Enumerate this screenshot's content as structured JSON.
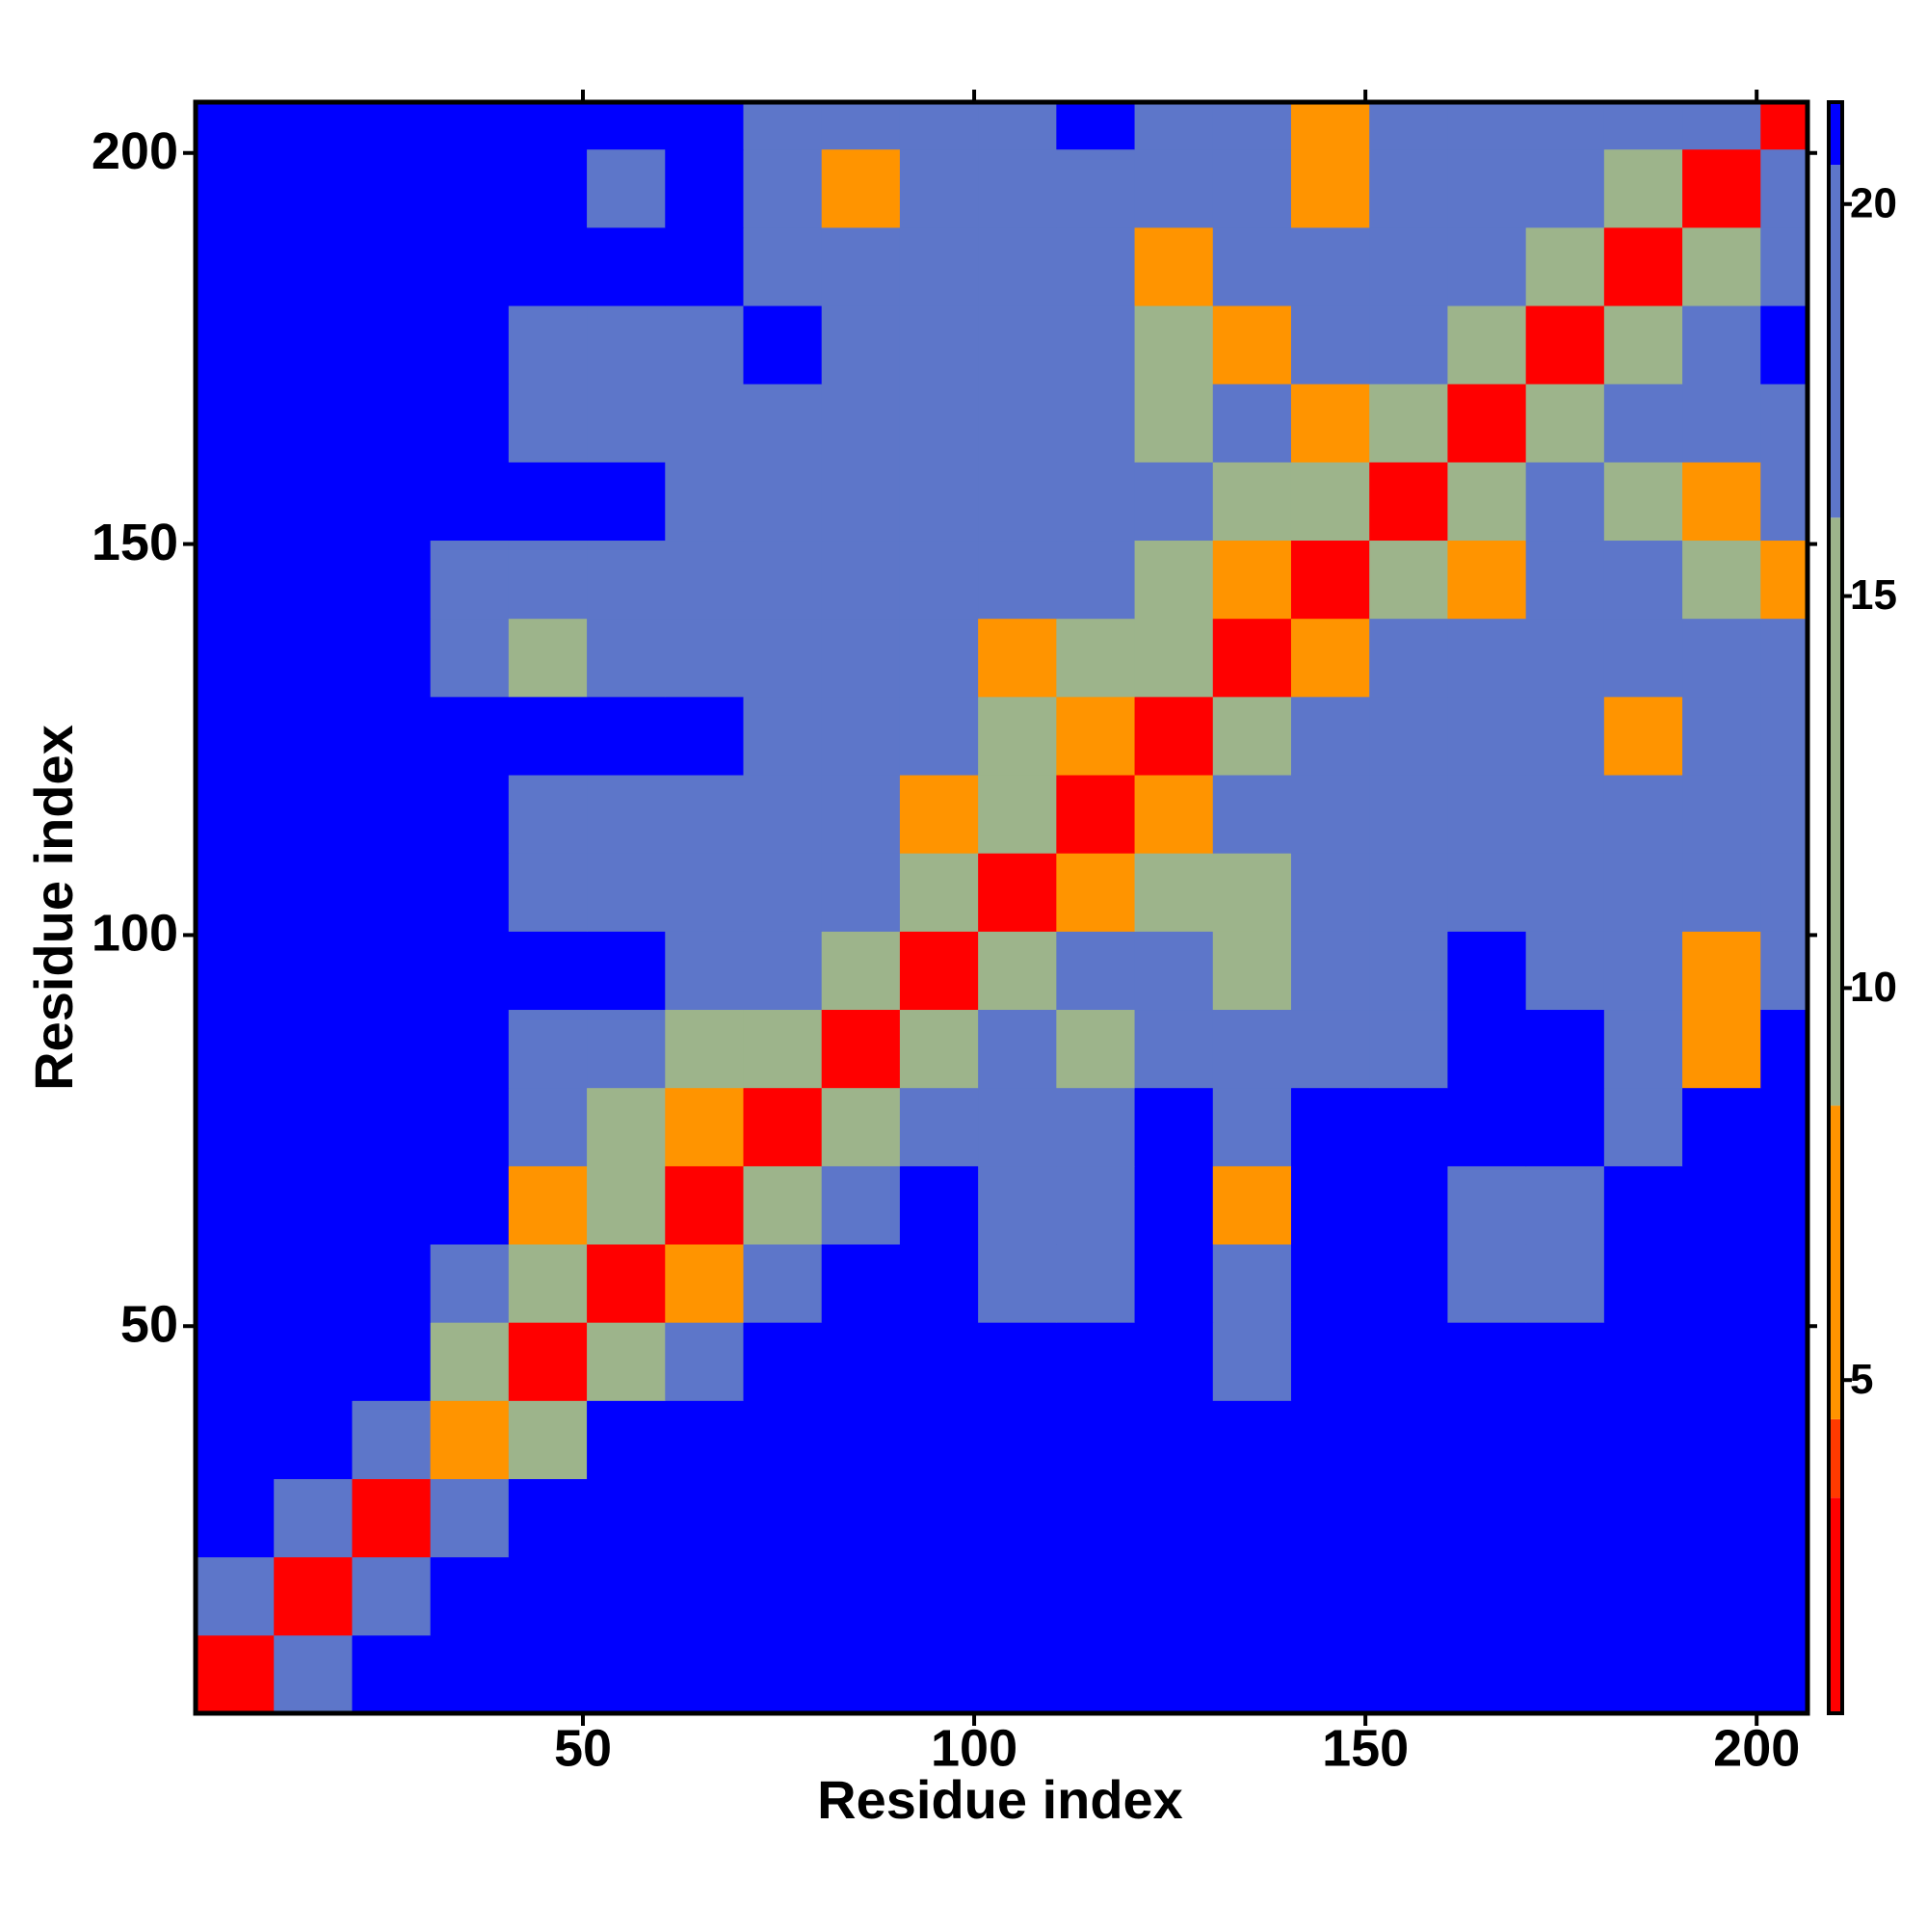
{
  "chart_data": {
    "type": "heatmap",
    "xlabel": "Residue index",
    "ylabel": "Residue index",
    "xlim": [
      0.5,
      206.5
    ],
    "ylim": [
      0.5,
      206.5
    ],
    "xticks": [
      50,
      100,
      150,
      200
    ],
    "yticks": [
      50,
      100,
      150,
      200
    ],
    "x_edges": [
      0.5,
      10.5,
      20.5,
      30.5,
      40.5,
      50.5,
      60.5,
      70.5,
      80.5,
      90.5,
      100.5,
      110.5,
      120.5,
      130.5,
      140.5,
      150.5,
      160.5,
      170.5,
      180.5,
      190.5,
      200.5,
      206.5
    ],
    "y_edges": [
      0.5,
      10.5,
      20.5,
      30.5,
      40.5,
      50.5,
      60.5,
      70.5,
      80.5,
      90.5,
      100.5,
      110.5,
      120.5,
      130.5,
      140.5,
      150.5,
      160.5,
      170.5,
      180.5,
      190.5,
      200.5,
      206.5
    ],
    "z": [
      [
        2,
        18,
        21,
        21,
        21,
        21,
        21,
        21,
        21,
        21,
        21,
        21,
        21,
        21,
        21,
        21,
        21,
        21,
        21,
        21,
        21
      ],
      [
        18,
        2,
        18,
        21,
        21,
        21,
        21,
        21,
        21,
        21,
        21,
        21,
        21,
        21,
        21,
        21,
        21,
        21,
        21,
        21,
        21
      ],
      [
        21,
        18,
        2,
        18,
        21,
        21,
        21,
        21,
        21,
        21,
        21,
        21,
        21,
        21,
        21,
        21,
        21,
        21,
        21,
        21,
        21
      ],
      [
        21,
        21,
        18,
        6.5,
        11,
        21,
        21,
        21,
        21,
        21,
        21,
        21,
        21,
        21,
        21,
        21,
        21,
        21,
        21,
        21,
        21
      ],
      [
        21,
        21,
        21,
        11,
        2,
        11,
        18,
        21,
        21,
        21,
        21,
        21,
        21,
        18,
        21,
        21,
        21,
        21,
        21,
        21,
        21
      ],
      [
        21,
        21,
        21,
        18,
        11,
        2,
        6.5,
        18,
        21,
        21,
        18,
        18,
        21,
        18,
        21,
        21,
        18,
        18,
        21,
        21,
        21
      ],
      [
        21,
        21,
        21,
        21,
        6.5,
        11,
        2,
        11,
        18,
        21,
        18,
        18,
        21,
        6.5,
        21,
        21,
        18,
        18,
        21,
        21,
        21
      ],
      [
        21,
        21,
        21,
        21,
        18,
        11,
        6.5,
        2,
        11,
        18,
        18,
        18,
        21,
        18,
        21,
        21,
        21,
        21,
        18,
        21,
        21
      ],
      [
        21,
        21,
        21,
        21,
        18,
        18,
        11,
        11,
        2,
        11,
        18,
        11,
        18,
        18,
        18,
        18,
        21,
        21,
        18,
        6.5,
        21
      ],
      [
        21,
        21,
        21,
        21,
        21,
        21,
        18,
        18,
        11,
        2,
        11,
        18,
        18,
        11,
        18,
        18,
        21,
        18,
        18,
        6.5,
        18
      ],
      [
        21,
        21,
        21,
        21,
        18,
        18,
        18,
        18,
        18,
        11,
        2,
        6.5,
        11,
        11,
        18,
        18,
        18,
        18,
        18,
        18,
        18
      ],
      [
        21,
        21,
        21,
        21,
        18,
        18,
        18,
        18,
        18,
        6.5,
        11,
        2,
        6.5,
        18,
        18,
        18,
        18,
        18,
        18,
        18,
        18
      ],
      [
        21,
        21,
        21,
        21,
        21,
        21,
        21,
        18,
        18,
        18,
        11,
        6.5,
        2,
        11,
        18,
        18,
        18,
        18,
        6.5,
        18,
        18
      ],
      [
        21,
        21,
        21,
        18,
        11,
        18,
        18,
        18,
        18,
        18,
        6.5,
        11,
        11,
        2,
        6.5,
        18,
        18,
        18,
        18,
        18,
        18
      ],
      [
        21,
        21,
        21,
        18,
        18,
        18,
        18,
        18,
        18,
        18,
        18,
        18,
        11,
        6.5,
        2,
        11,
        6.5,
        18,
        18,
        11,
        6.5
      ],
      [
        21,
        21,
        21,
        21,
        21,
        21,
        18,
        18,
        18,
        18,
        18,
        18,
        18,
        11,
        11,
        2,
        11,
        18,
        11,
        6.5,
        18
      ],
      [
        21,
        21,
        21,
        21,
        18,
        18,
        18,
        18,
        18,
        18,
        18,
        18,
        11,
        18,
        6.5,
        11,
        2,
        11,
        18,
        18,
        18
      ],
      [
        21,
        21,
        21,
        21,
        18,
        18,
        18,
        21,
        18,
        18,
        18,
        18,
        11,
        6.5,
        18,
        18,
        11,
        2,
        11,
        18,
        21
      ],
      [
        21,
        21,
        21,
        21,
        21,
        21,
        21,
        18,
        18,
        18,
        18,
        18,
        6.5,
        18,
        18,
        18,
        18,
        11,
        2,
        11,
        18
      ],
      [
        21,
        21,
        21,
        21,
        21,
        18,
        21,
        18,
        6.5,
        18,
        18,
        18,
        18,
        18,
        6.5,
        18,
        18,
        18,
        11,
        2,
        18
      ],
      [
        21,
        21,
        21,
        21,
        21,
        21,
        21,
        18,
        18,
        18,
        18,
        21,
        18,
        18,
        6.5,
        18,
        18,
        18,
        18,
        18,
        2
      ]
    ],
    "colorscale": [
      {
        "max": 3.5,
        "color": "#ff0000"
      },
      {
        "max": 4.5,
        "color": "#ff3a00"
      },
      {
        "max": 8.5,
        "color": "#ff9400"
      },
      {
        "max": 16,
        "color": "#9db48b"
      },
      {
        "max": 20.5,
        "color": "#5d76c9"
      },
      {
        "max": 22,
        "color": "#0000ff"
      }
    ],
    "colorbar": {
      "clim": [
        0.75,
        21.3
      ],
      "ticks": [
        5,
        10,
        15,
        20
      ]
    }
  }
}
